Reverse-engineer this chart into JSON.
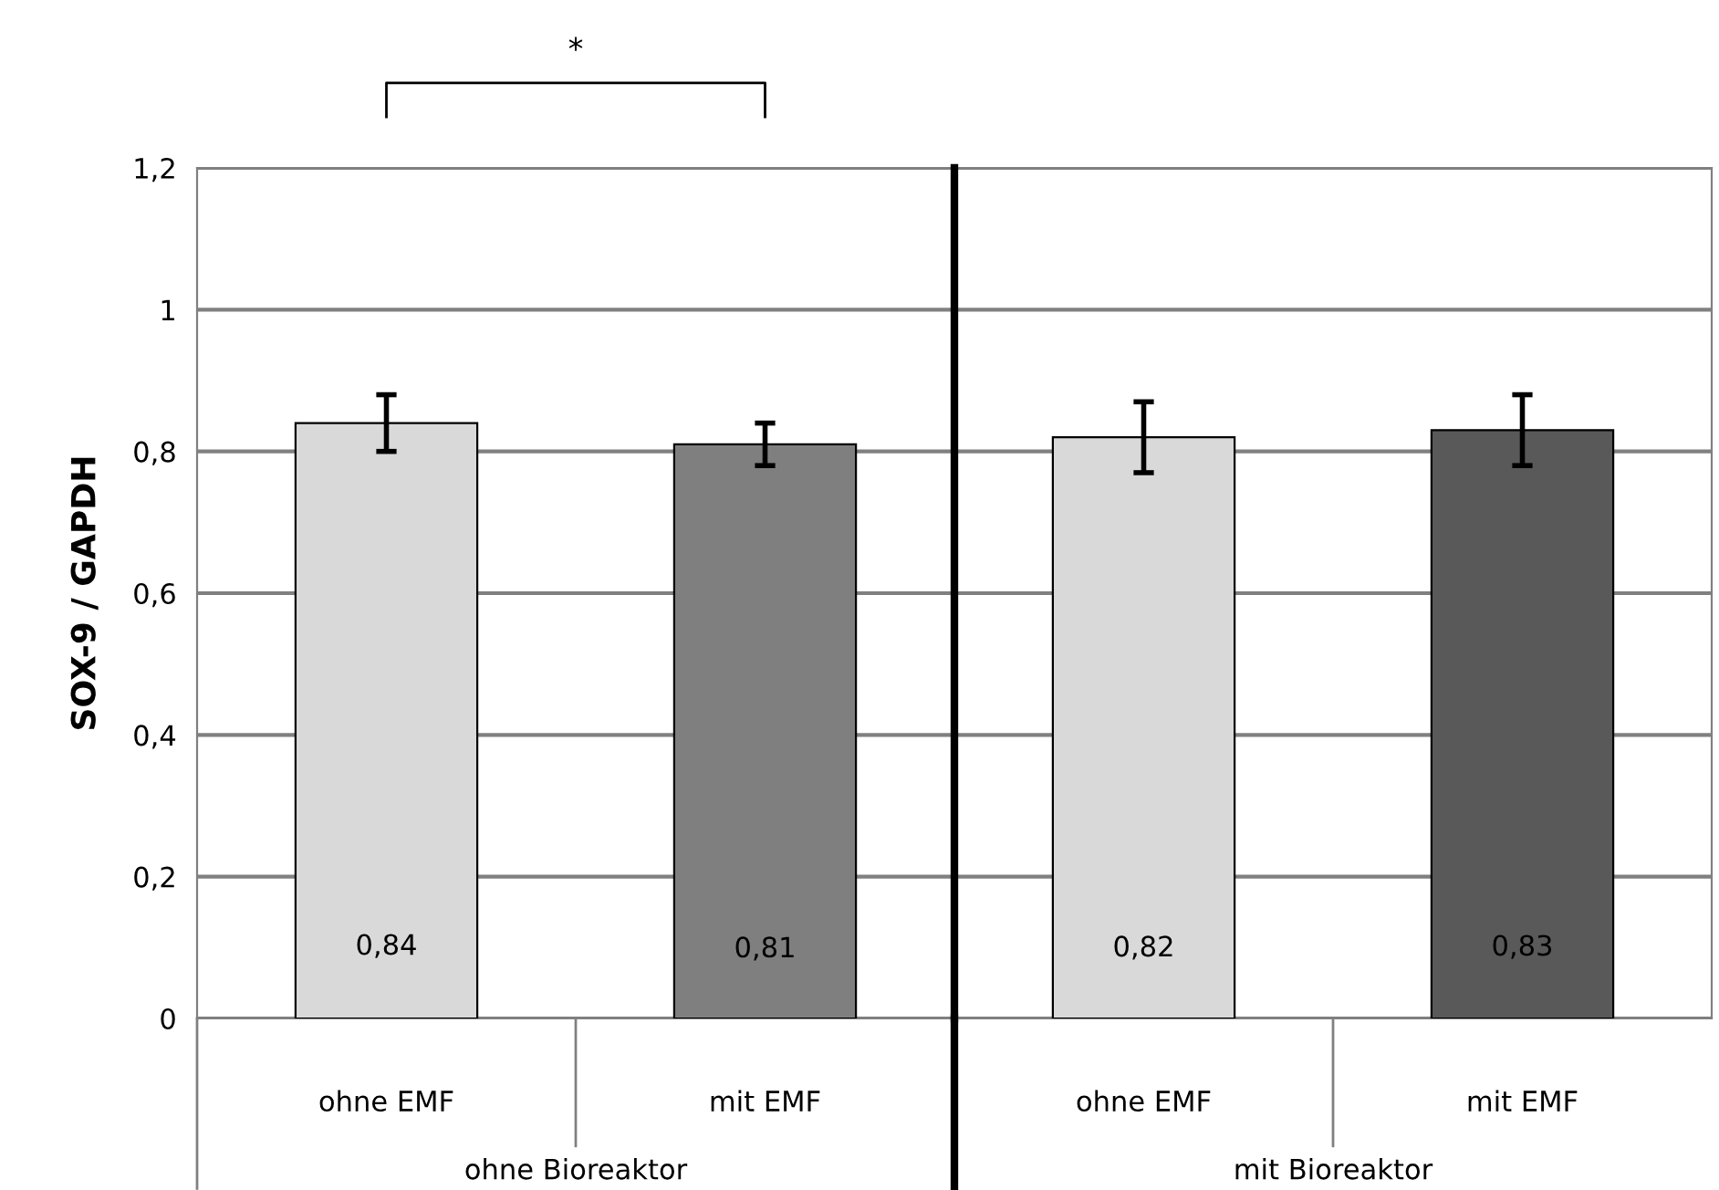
{
  "chart_data": [
    {
      "type": "bar",
      "ylabel": "SOX-9 / GAPDH",
      "xlabel": "ohne Bioreaktor",
      "categories": [
        "ohne EMF",
        "mit EMF"
      ],
      "values": [
        0.84,
        0.81
      ],
      "colors": [
        "#d9d9d9",
        "#7f7f7f"
      ],
      "errors": [
        0.04,
        0.03
      ],
      "value_labels": [
        "0,84",
        "0,81"
      ],
      "ylim": [
        0,
        1.2
      ],
      "yticks": [
        0,
        {
          "value": 0.2,
          "label": "0,2"
        },
        {
          "value": 0.4,
          "label": "0,4"
        },
        {
          "value": 0.6,
          "label": "0,6"
        },
        {
          "value": 0.8,
          "label": "0,8"
        },
        1,
        {
          "value": 1.2,
          "label": "1,2"
        }
      ],
      "grid": "y",
      "annotations": [
        "*"
      ]
    },
    {
      "type": "bar",
      "xlabel": "mit Bioreaktor",
      "categories": [
        "ohne EMF",
        "mit EMF"
      ],
      "values": [
        0.82,
        0.83
      ],
      "colors": [
        "#d9d9d9",
        "#595959"
      ],
      "errors": [
        0.05,
        0.05
      ],
      "value_labels": [
        "0,82",
        "0,83"
      ],
      "ylim": [
        0,
        1.2
      ],
      "yticks": [
        {
          "value": 0,
          "label": null
        },
        {
          "value": 0.2,
          "label": null
        },
        {
          "value": 0.4,
          "label": null
        },
        {
          "value": 0.6,
          "label": null
        },
        {
          "value": 0.8,
          "label": null
        },
        {
          "value": 1,
          "label": null
        },
        {
          "value": 1.2,
          "label": null
        }
      ],
      "grid": "y",
      "tick_labels": "x"
    }
  ]
}
